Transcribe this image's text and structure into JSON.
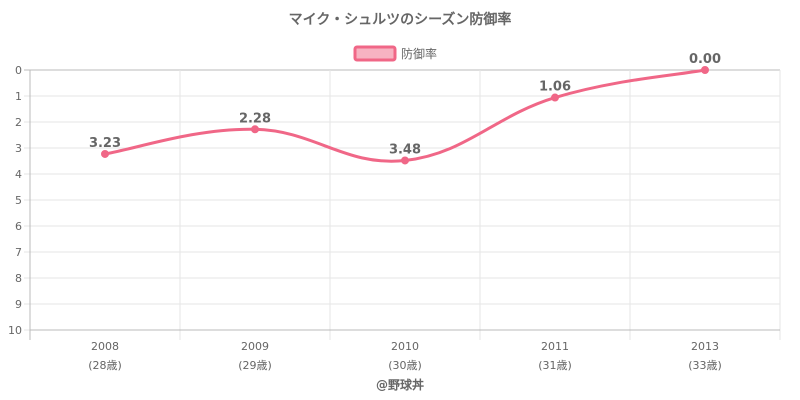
{
  "chart_data": {
    "type": "line",
    "title": "マイク・シュルツのシーズン防御率",
    "legend": {
      "label": "防御率",
      "position": "top"
    },
    "categories": [
      "2008",
      "2009",
      "2010",
      "2011",
      "2013"
    ],
    "category_sublabels": [
      "(28歳)",
      "(29歳)",
      "(30歳)",
      "(31歳)",
      "(33歳)"
    ],
    "series": [
      {
        "name": "防御率",
        "values": [
          3.23,
          2.28,
          3.48,
          1.06,
          0.0
        ],
        "labels": [
          "3.23",
          "2.28",
          "3.48",
          "1.06",
          "0.00"
        ]
      }
    ],
    "y_axis": {
      "min": 0,
      "max": 10,
      "step": 1,
      "reversed": true,
      "ticks": [
        "0",
        "1",
        "2",
        "3",
        "4",
        "5",
        "6",
        "7",
        "8",
        "9",
        "10"
      ]
    },
    "grid": true,
    "colors": {
      "line": "#f06787",
      "point": "#f06787",
      "grid": "#e5e5e5",
      "axis": "#bbbbbb",
      "legend_fill": "#f7b3c2"
    }
  },
  "credit": "@野球丼"
}
